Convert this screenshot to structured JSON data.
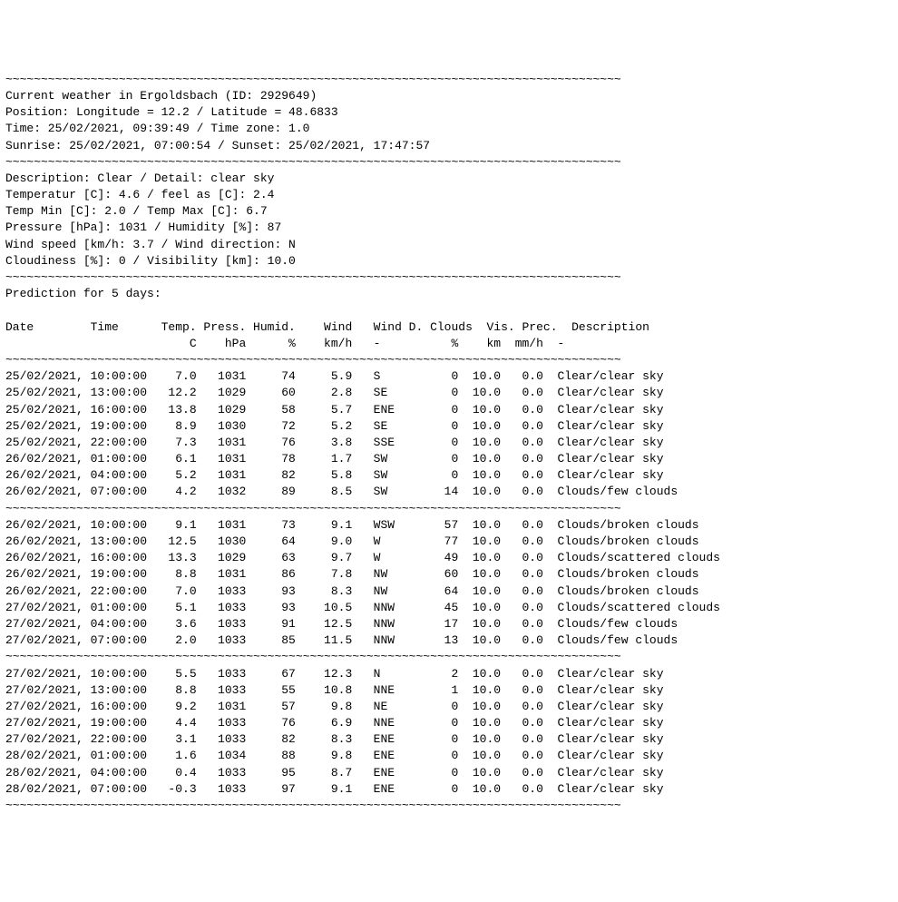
{
  "styling": {
    "font_family": "Courier New",
    "font_size_pt": 10,
    "background_color": "#ffffff",
    "text_color": "#000000",
    "separator_char": "~",
    "separator_length": 87,
    "line_height": 1.4
  },
  "header": {
    "location_line": "Current weather in Ergoldsbach (ID: 2929649)",
    "position_line": "Position: Longitude = 12.2 / Latitude = 48.6833",
    "time_line": "Time: 25/02/2021, 09:39:49 / Time zone: 1.0",
    "sun_line": "Sunrise: 25/02/2021, 07:00:54 / Sunset: 25/02/2021, 17:47:57"
  },
  "current": {
    "description_line": "Description: Clear / Detail: clear sky",
    "temp_line": "Temperatur [C]: 4.6 / feel as [C]: 2.4",
    "minmax_line": "Temp Min [C]: 2.0 / Temp Max [C]: 6.7",
    "pressure_line": "Pressure [hPa]: 1031 / Humidity [%]: 87",
    "wind_line": "Wind speed [km/h: 3.7 / Wind direction: N",
    "cloud_line": "Cloudiness [%]: 0 / Visibility [km]: 10.0"
  },
  "prediction_title": "Prediction for 5 days:",
  "table": {
    "columns": [
      {
        "label1": "Date",
        "label2": "",
        "width": 12,
        "align": "left"
      },
      {
        "label1": "Time",
        "label2": "",
        "width": 9,
        "align": "left"
      },
      {
        "label1": "Temp.",
        "label2": "C",
        "width": 6,
        "align": "right"
      },
      {
        "label1": "Press.",
        "label2": "hPa",
        "width": 7,
        "align": "right"
      },
      {
        "label1": "Humid.",
        "label2": "%",
        "width": 7,
        "align": "right"
      },
      {
        "label1": "Wind",
        "label2": "km/h",
        "width": 8,
        "align": "right"
      },
      {
        "label1": "Wind D.",
        "label2": "-",
        "width": 8,
        "align": "left",
        "pad_left": 3
      },
      {
        "label1": "Clouds",
        "label2": "%",
        "width": 7,
        "align": "right"
      },
      {
        "label1": "Vis.",
        "label2": "km",
        "width": 6,
        "align": "right"
      },
      {
        "label1": "Prec.",
        "label2": "mm/h",
        "width": 6,
        "align": "right"
      },
      {
        "label1": "Description",
        "label2": "-",
        "width": 24,
        "align": "left",
        "pad_left": 2
      }
    ],
    "groups": [
      {
        "rows": [
          {
            "date": "25/02/2021,",
            "time": "10:00:00",
            "temp": "7.0",
            "press": "1031",
            "humid": "74",
            "wind": "5.9",
            "windd": "S",
            "clouds": "0",
            "vis": "10.0",
            "prec": "0.0",
            "desc": "Clear/clear sky"
          },
          {
            "date": "25/02/2021,",
            "time": "13:00:00",
            "temp": "12.2",
            "press": "1029",
            "humid": "60",
            "wind": "2.8",
            "windd": "SE",
            "clouds": "0",
            "vis": "10.0",
            "prec": "0.0",
            "desc": "Clear/clear sky"
          },
          {
            "date": "25/02/2021,",
            "time": "16:00:00",
            "temp": "13.8",
            "press": "1029",
            "humid": "58",
            "wind": "5.7",
            "windd": "ENE",
            "clouds": "0",
            "vis": "10.0",
            "prec": "0.0",
            "desc": "Clear/clear sky"
          },
          {
            "date": "25/02/2021,",
            "time": "19:00:00",
            "temp": "8.9",
            "press": "1030",
            "humid": "72",
            "wind": "5.2",
            "windd": "SE",
            "clouds": "0",
            "vis": "10.0",
            "prec": "0.0",
            "desc": "Clear/clear sky"
          },
          {
            "date": "25/02/2021,",
            "time": "22:00:00",
            "temp": "7.3",
            "press": "1031",
            "humid": "76",
            "wind": "3.8",
            "windd": "SSE",
            "clouds": "0",
            "vis": "10.0",
            "prec": "0.0",
            "desc": "Clear/clear sky"
          },
          {
            "date": "26/02/2021,",
            "time": "01:00:00",
            "temp": "6.1",
            "press": "1031",
            "humid": "78",
            "wind": "1.7",
            "windd": "SW",
            "clouds": "0",
            "vis": "10.0",
            "prec": "0.0",
            "desc": "Clear/clear sky"
          },
          {
            "date": "26/02/2021,",
            "time": "04:00:00",
            "temp": "5.2",
            "press": "1031",
            "humid": "82",
            "wind": "5.8",
            "windd": "SW",
            "clouds": "0",
            "vis": "10.0",
            "prec": "0.0",
            "desc": "Clear/clear sky"
          },
          {
            "date": "26/02/2021,",
            "time": "07:00:00",
            "temp": "4.2",
            "press": "1032",
            "humid": "89",
            "wind": "8.5",
            "windd": "SW",
            "clouds": "14",
            "vis": "10.0",
            "prec": "0.0",
            "desc": "Clouds/few clouds"
          }
        ]
      },
      {
        "rows": [
          {
            "date": "26/02/2021,",
            "time": "10:00:00",
            "temp": "9.1",
            "press": "1031",
            "humid": "73",
            "wind": "9.1",
            "windd": "WSW",
            "clouds": "57",
            "vis": "10.0",
            "prec": "0.0",
            "desc": "Clouds/broken clouds"
          },
          {
            "date": "26/02/2021,",
            "time": "13:00:00",
            "temp": "12.5",
            "press": "1030",
            "humid": "64",
            "wind": "9.0",
            "windd": "W",
            "clouds": "77",
            "vis": "10.0",
            "prec": "0.0",
            "desc": "Clouds/broken clouds"
          },
          {
            "date": "26/02/2021,",
            "time": "16:00:00",
            "temp": "13.3",
            "press": "1029",
            "humid": "63",
            "wind": "9.7",
            "windd": "W",
            "clouds": "49",
            "vis": "10.0",
            "prec": "0.0",
            "desc": "Clouds/scattered clouds"
          },
          {
            "date": "26/02/2021,",
            "time": "19:00:00",
            "temp": "8.8",
            "press": "1031",
            "humid": "86",
            "wind": "7.8",
            "windd": "NW",
            "clouds": "60",
            "vis": "10.0",
            "prec": "0.0",
            "desc": "Clouds/broken clouds"
          },
          {
            "date": "26/02/2021,",
            "time": "22:00:00",
            "temp": "7.0",
            "press": "1033",
            "humid": "93",
            "wind": "8.3",
            "windd": "NW",
            "clouds": "64",
            "vis": "10.0",
            "prec": "0.0",
            "desc": "Clouds/broken clouds"
          },
          {
            "date": "27/02/2021,",
            "time": "01:00:00",
            "temp": "5.1",
            "press": "1033",
            "humid": "93",
            "wind": "10.5",
            "windd": "NNW",
            "clouds": "45",
            "vis": "10.0",
            "prec": "0.0",
            "desc": "Clouds/scattered clouds"
          },
          {
            "date": "27/02/2021,",
            "time": "04:00:00",
            "temp": "3.6",
            "press": "1033",
            "humid": "91",
            "wind": "12.5",
            "windd": "NNW",
            "clouds": "17",
            "vis": "10.0",
            "prec": "0.0",
            "desc": "Clouds/few clouds"
          },
          {
            "date": "27/02/2021,",
            "time": "07:00:00",
            "temp": "2.0",
            "press": "1033",
            "humid": "85",
            "wind": "11.5",
            "windd": "NNW",
            "clouds": "13",
            "vis": "10.0",
            "prec": "0.0",
            "desc": "Clouds/few clouds"
          }
        ]
      },
      {
        "rows": [
          {
            "date": "27/02/2021,",
            "time": "10:00:00",
            "temp": "5.5",
            "press": "1033",
            "humid": "67",
            "wind": "12.3",
            "windd": "N",
            "clouds": "2",
            "vis": "10.0",
            "prec": "0.0",
            "desc": "Clear/clear sky"
          },
          {
            "date": "27/02/2021,",
            "time": "13:00:00",
            "temp": "8.8",
            "press": "1033",
            "humid": "55",
            "wind": "10.8",
            "windd": "NNE",
            "clouds": "1",
            "vis": "10.0",
            "prec": "0.0",
            "desc": "Clear/clear sky"
          },
          {
            "date": "27/02/2021,",
            "time": "16:00:00",
            "temp": "9.2",
            "press": "1031",
            "humid": "57",
            "wind": "9.8",
            "windd": "NE",
            "clouds": "0",
            "vis": "10.0",
            "prec": "0.0",
            "desc": "Clear/clear sky"
          },
          {
            "date": "27/02/2021,",
            "time": "19:00:00",
            "temp": "4.4",
            "press": "1033",
            "humid": "76",
            "wind": "6.9",
            "windd": "NNE",
            "clouds": "0",
            "vis": "10.0",
            "prec": "0.0",
            "desc": "Clear/clear sky"
          },
          {
            "date": "27/02/2021,",
            "time": "22:00:00",
            "temp": "3.1",
            "press": "1033",
            "humid": "82",
            "wind": "8.3",
            "windd": "ENE",
            "clouds": "0",
            "vis": "10.0",
            "prec": "0.0",
            "desc": "Clear/clear sky"
          },
          {
            "date": "28/02/2021,",
            "time": "01:00:00",
            "temp": "1.6",
            "press": "1034",
            "humid": "88",
            "wind": "9.8",
            "windd": "ENE",
            "clouds": "0",
            "vis": "10.0",
            "prec": "0.0",
            "desc": "Clear/clear sky"
          },
          {
            "date": "28/02/2021,",
            "time": "04:00:00",
            "temp": "0.4",
            "press": "1033",
            "humid": "95",
            "wind": "8.7",
            "windd": "ENE",
            "clouds": "0",
            "vis": "10.0",
            "prec": "0.0",
            "desc": "Clear/clear sky"
          },
          {
            "date": "28/02/2021,",
            "time": "07:00:00",
            "temp": "-0.3",
            "press": "1033",
            "humid": "97",
            "wind": "9.1",
            "windd": "ENE",
            "clouds": "0",
            "vis": "10.0",
            "prec": "0.0",
            "desc": "Clear/clear sky"
          }
        ]
      }
    ]
  }
}
